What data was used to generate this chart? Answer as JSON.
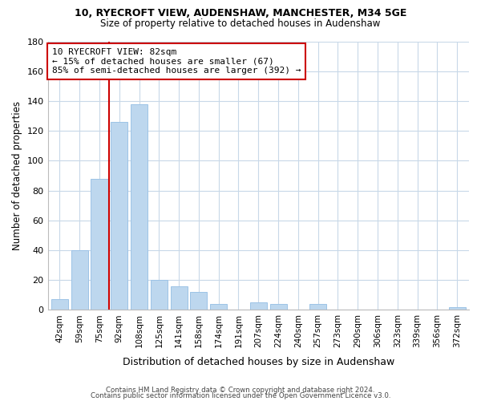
{
  "title1": "10, RYECROFT VIEW, AUDENSHAW, MANCHESTER, M34 5GE",
  "title2": "Size of property relative to detached houses in Audenshaw",
  "xlabel": "Distribution of detached houses by size in Audenshaw",
  "ylabel": "Number of detached properties",
  "bar_labels": [
    "42sqm",
    "59sqm",
    "75sqm",
    "92sqm",
    "108sqm",
    "125sqm",
    "141sqm",
    "158sqm",
    "174sqm",
    "191sqm",
    "207sqm",
    "224sqm",
    "240sqm",
    "257sqm",
    "273sqm",
    "290sqm",
    "306sqm",
    "323sqm",
    "339sqm",
    "356sqm",
    "372sqm"
  ],
  "bar_values": [
    7,
    40,
    88,
    126,
    138,
    20,
    16,
    12,
    4,
    0,
    5,
    4,
    0,
    4,
    0,
    0,
    0,
    0,
    0,
    0,
    2
  ],
  "bar_color": "#bdd7ee",
  "bar_edge_color": "#9dc3e6",
  "vline_x": 2.5,
  "vline_color": "#cc0000",
  "annotation_text": "10 RYECROFT VIEW: 82sqm\n← 15% of detached houses are smaller (67)\n85% of semi-detached houses are larger (392) →",
  "annotation_box_color": "#ffffff",
  "annotation_box_edge": "#cc0000",
  "ylim": [
    0,
    180
  ],
  "yticks": [
    0,
    20,
    40,
    60,
    80,
    100,
    120,
    140,
    160,
    180
  ],
  "footer1": "Contains HM Land Registry data © Crown copyright and database right 2024.",
  "footer2": "Contains public sector information licensed under the Open Government Licence v3.0.",
  "background_color": "#ffffff",
  "grid_color": "#c8d8e8"
}
